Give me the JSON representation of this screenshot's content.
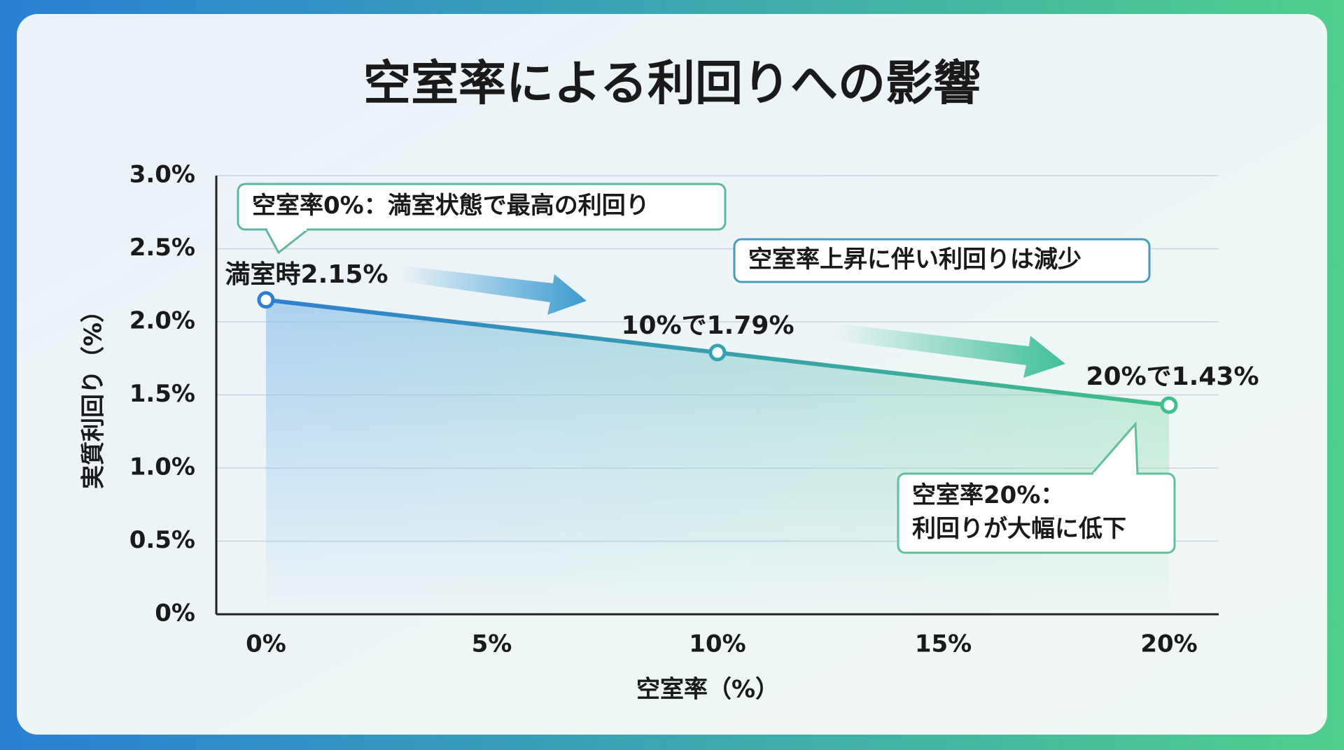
{
  "chart_data": {
    "type": "line",
    "title": "空室率による利回りへの影響",
    "x_label": "空室率（%）",
    "y_label": "実質利回り（%）",
    "x": [
      0,
      10,
      20
    ],
    "values": [
      2.15,
      1.79,
      1.43
    ],
    "value_labels": [
      "満室時2.15%",
      "10%で1.79%",
      "20%で1.43%"
    ],
    "xlim": [
      -1.1,
      21.1
    ],
    "xticks": [
      {
        "value": 0,
        "label": "0%"
      },
      {
        "value": 5,
        "label": "5%"
      },
      {
        "value": 10,
        "label": "10%"
      },
      {
        "value": 15,
        "label": "15%"
      },
      {
        "value": 20,
        "label": "20%"
      }
    ],
    "ylim": [
      0,
      3.0
    ],
    "yticks": [
      {
        "value": 0,
        "label": "0%"
      },
      {
        "value": 0.5,
        "label": "0.5%"
      },
      {
        "value": 1.0,
        "label": "1.0%"
      },
      {
        "value": 1.5,
        "label": "1.5%"
      },
      {
        "value": 2.0,
        "label": "2.0%"
      },
      {
        "value": 2.5,
        "label": "2.5%"
      },
      {
        "value": 3.0,
        "label": "3.0%"
      }
    ],
    "grid": true,
    "annotations": [
      {
        "lines": [
          "空室率0%：満室状態で最高の利回り"
        ]
      },
      {
        "lines": [
          "空室率上昇に伴い利回りは減少"
        ]
      },
      {
        "lines": [
          "空室率20%：",
          "利回りが大幅に低下"
        ]
      }
    ]
  }
}
